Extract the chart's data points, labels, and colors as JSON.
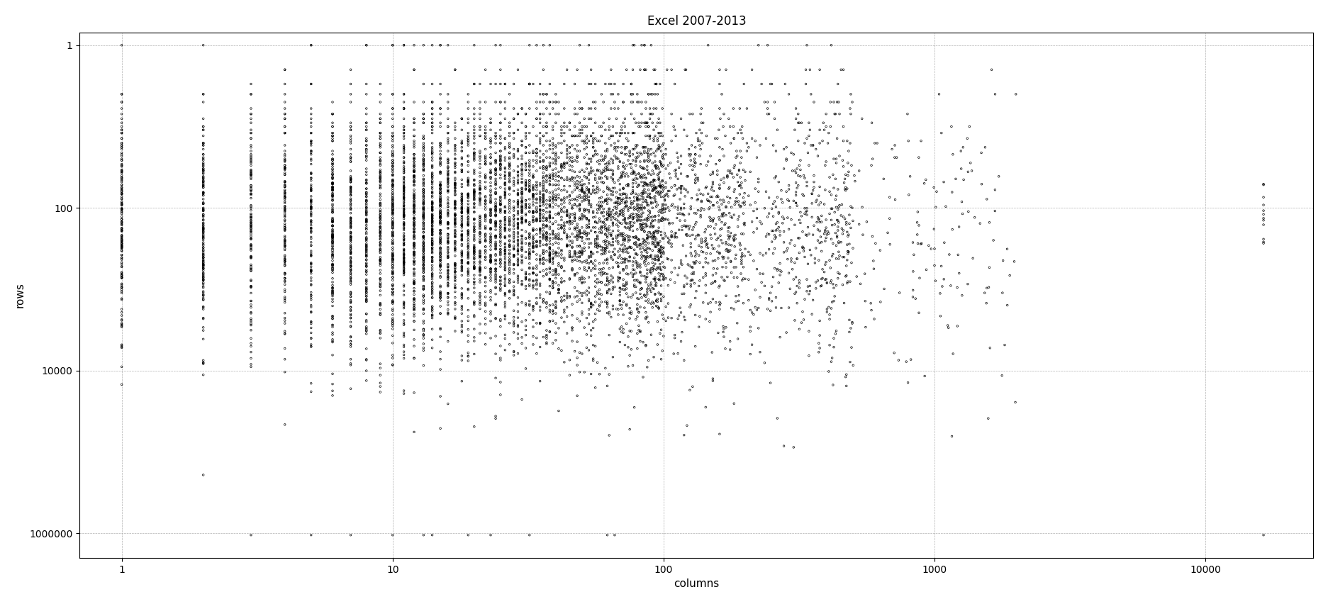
{
  "title": "Excel 2007-2013",
  "xlabel": "columns",
  "ylabel": "rows",
  "xlim": [
    0.7,
    25000
  ],
  "ylim": [
    2000000,
    0.7
  ],
  "background_color": "#ffffff",
  "grid_color": "#b0b0b0",
  "marker_facecolor": "none",
  "marker_edge_color": "#000000",
  "marker_size": 3.5,
  "marker_linewidth": 0.5,
  "seed": 42,
  "x_max_col": 16384,
  "y_max_row": 1048576
}
